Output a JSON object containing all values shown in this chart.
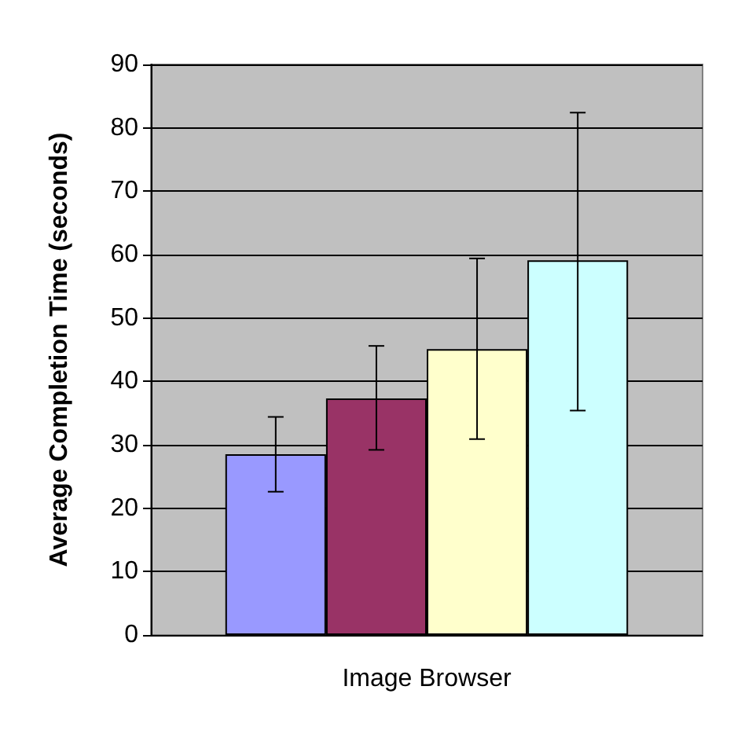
{
  "chart_data": {
    "type": "bar",
    "ylabel": "Average Completion Time (seconds)",
    "categories": [
      "Image Browser"
    ],
    "series": [
      {
        "color": "#9999ff",
        "values": [
          28.5
        ],
        "errors": [
          [
            22.6,
            34.4
          ]
        ]
      },
      {
        "color": "#993366",
        "values": [
          37.3
        ],
        "errors": [
          [
            29.2,
            45.6
          ]
        ]
      },
      {
        "color": "#ffffcc",
        "values": [
          45.1
        ],
        "errors": [
          [
            30.9,
            59.4
          ]
        ]
      },
      {
        "color": "#ccffff",
        "values": [
          59.1
        ],
        "errors": [
          [
            35.4,
            82.4
          ]
        ]
      }
    ],
    "ylim": [
      0,
      90
    ],
    "yticks": [
      0,
      10,
      20,
      30,
      40,
      50,
      60,
      70,
      80,
      90
    ],
    "grid": "y"
  }
}
